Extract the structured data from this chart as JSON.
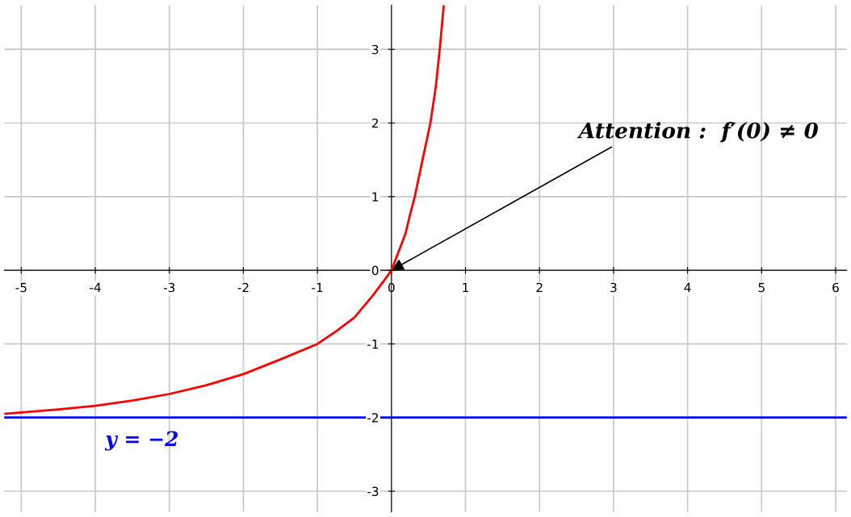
{
  "chart_data": {
    "type": "line",
    "x": [
      -5.23,
      -5,
      -4.5,
      -4,
      -3.5,
      -3,
      -2.5,
      -2,
      -1.5,
      -1,
      -0.75,
      -0.5,
      -0.25,
      -0.1,
      0,
      0.1,
      0.19,
      0.25,
      0.315,
      0.42,
      0.526,
      0.6,
      0.652,
      0.707
    ],
    "series": [
      {
        "color": "#ff0000",
        "values": [
          -1.95,
          -1.93,
          -1.89,
          -1.84,
          -1.77,
          -1.68,
          -1.56,
          -1.41,
          -1.21,
          -1.0,
          -0.83,
          -0.64,
          -0.34,
          -0.14,
          0,
          0.26,
          0.5,
          0.75,
          1,
          1.5,
          2,
          2.5,
          3,
          3.6
        ]
      }
    ],
    "xlim": [
      -5.23,
      6.15
    ],
    "ylim": [
      -3.28,
      3.6
    ],
    "xticks": [
      -5,
      -4,
      -3,
      -2,
      -1,
      0,
      1,
      2,
      3,
      4,
      5,
      6
    ],
    "yticks": [
      -3,
      -2,
      -1,
      0,
      1,
      2,
      3
    ],
    "grid": true,
    "ref_lines": [
      {
        "axis": "y",
        "value": -2,
        "label": "y = −2",
        "color": "#0000ff"
      }
    ],
    "annotations": [
      {
        "text": "Attention :  f′(0) ≠ 0",
        "x": 0,
        "y": 0
      }
    ]
  }
}
